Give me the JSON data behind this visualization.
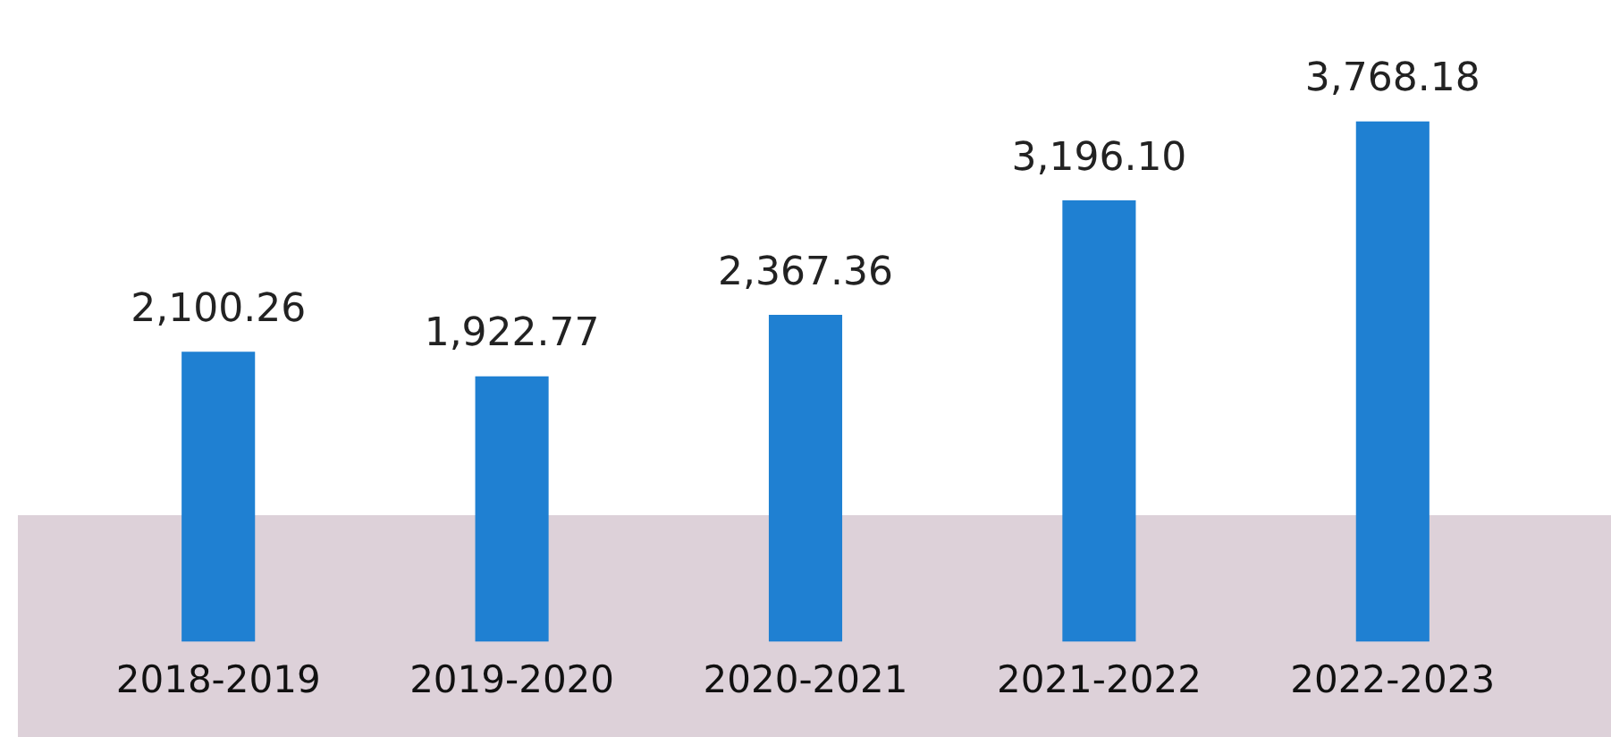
{
  "chart_data": {
    "type": "bar",
    "categories": [
      "2018-2019",
      "2019-2020",
      "2020-2021",
      "2021-2022",
      "2022-2023"
    ],
    "values": [
      2100.26,
      1922.77,
      2367.36,
      3196.1,
      3768.18
    ],
    "value_labels": [
      "2,100.26",
      "1,922.77",
      "2,367.36",
      "3,196.10",
      "3,768.18"
    ],
    "color": "#1f80d2",
    "grid": false,
    "legend": false
  }
}
